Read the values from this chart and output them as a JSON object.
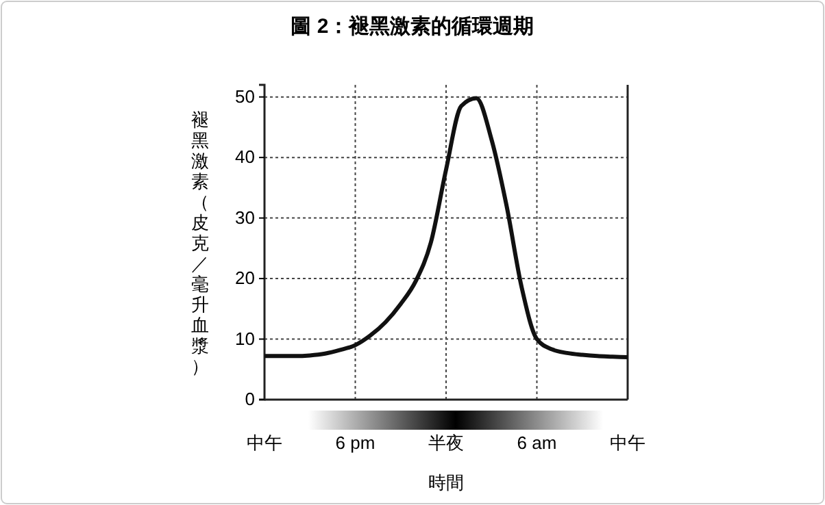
{
  "chart_data": {
    "type": "line",
    "title": "圖 2：褪黑激素的循環週期",
    "xlabel": "時間",
    "ylabel": "褪黑激素（皮克／毫升血漿）",
    "categories": [
      "中午",
      null,
      null,
      null,
      null,
      null,
      "6 pm",
      null,
      null,
      null,
      null,
      null,
      "半夜",
      null,
      null,
      null,
      null,
      null,
      "6 am",
      null,
      null,
      null,
      null,
      null,
      "中午"
    ],
    "series": [
      {
        "color": "#111111",
        "values": [
          7.2,
          7.2,
          7.2,
          7.3,
          7.6,
          8.2,
          9,
          10.6,
          12.8,
          15.8,
          19.6,
          26,
          38,
          48.5,
          49.8,
          43,
          32,
          18.5,
          10,
          8.3,
          7.7,
          7.4,
          7.2,
          7.1,
          7
        ]
      }
    ],
    "ylim": [
      0,
      52
    ],
    "yticks": [
      0,
      10,
      20,
      30,
      40,
      50
    ],
    "grid": true,
    "marker": "none",
    "line_style": "solid"
  }
}
